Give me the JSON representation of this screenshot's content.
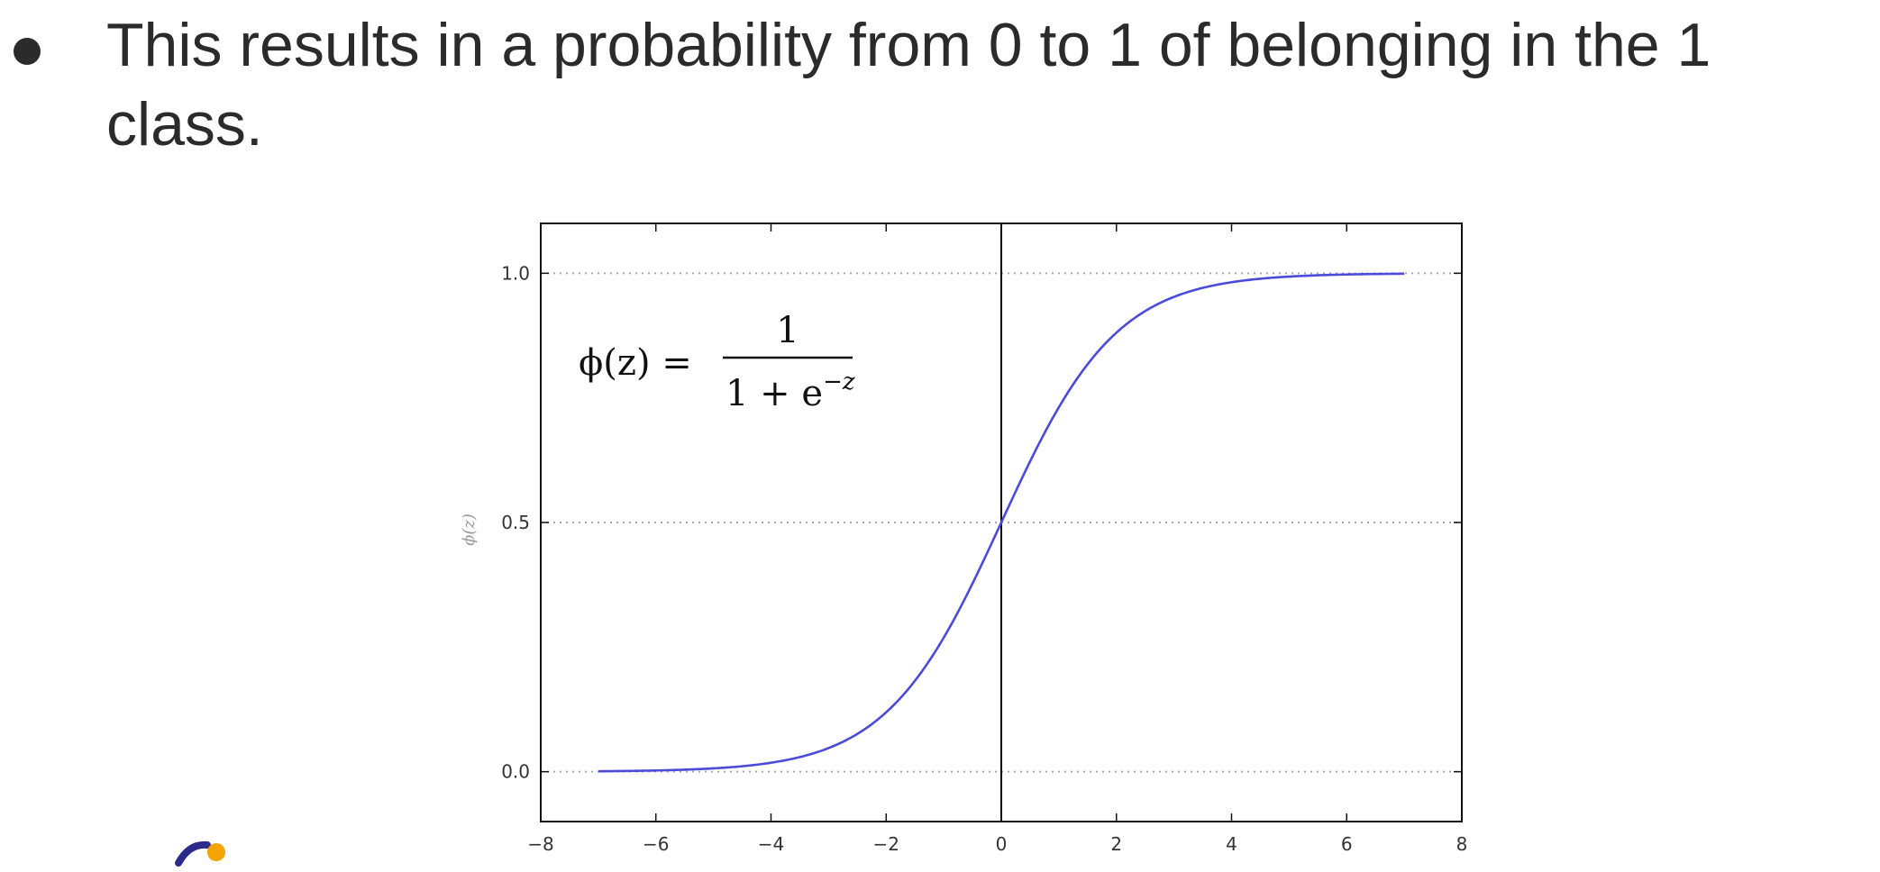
{
  "slide": {
    "bullet_text": "This results in a probability from 0 to 1 of belonging in the 1 class."
  },
  "chart_data": {
    "type": "line",
    "title": "",
    "xlabel": "",
    "ylabel": "ϕ(z)",
    "xlim": [
      -8,
      8
    ],
    "ylim": [
      -0.1,
      1.1
    ],
    "x_ticks": [
      "−8",
      "−6",
      "−4",
      "−2",
      "0",
      "2",
      "4",
      "6",
      "8"
    ],
    "y_ticks": [
      "0.0",
      "0.5",
      "1.0"
    ],
    "grid": "dotted horizontal at 0.0, 0.5, 1.0",
    "vertical_line_x": 0,
    "formula": {
      "lhs": "ϕ(z) =",
      "numerator": "1",
      "denominator": "1 + e",
      "exponent": "−z"
    },
    "series": [
      {
        "function": "1/(1+exp(-z))",
        "x_range": [
          -7,
          7
        ],
        "color": "#4a4adb"
      }
    ]
  }
}
